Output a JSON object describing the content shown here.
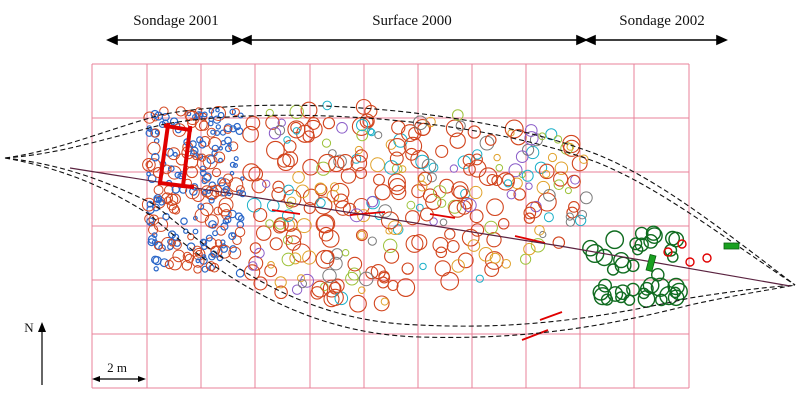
{
  "sections": [
    {
      "label": "Sondage 2001"
    },
    {
      "label": "Surface 2000"
    },
    {
      "label": "Sondage 2002"
    }
  ],
  "scale": {
    "label": "2 m"
  },
  "north": {
    "label": "N"
  },
  "colors": {
    "grid": "#e8829a",
    "outline": "#111111",
    "axis": "#5a2340",
    "sondage2001": "#2a66c8",
    "surface": "#d2451e",
    "surfaceAlt": "#1bb0c8",
    "sondage2002": "#0f6b1f",
    "marker": "#e00000",
    "highlight": "#19a020"
  }
}
